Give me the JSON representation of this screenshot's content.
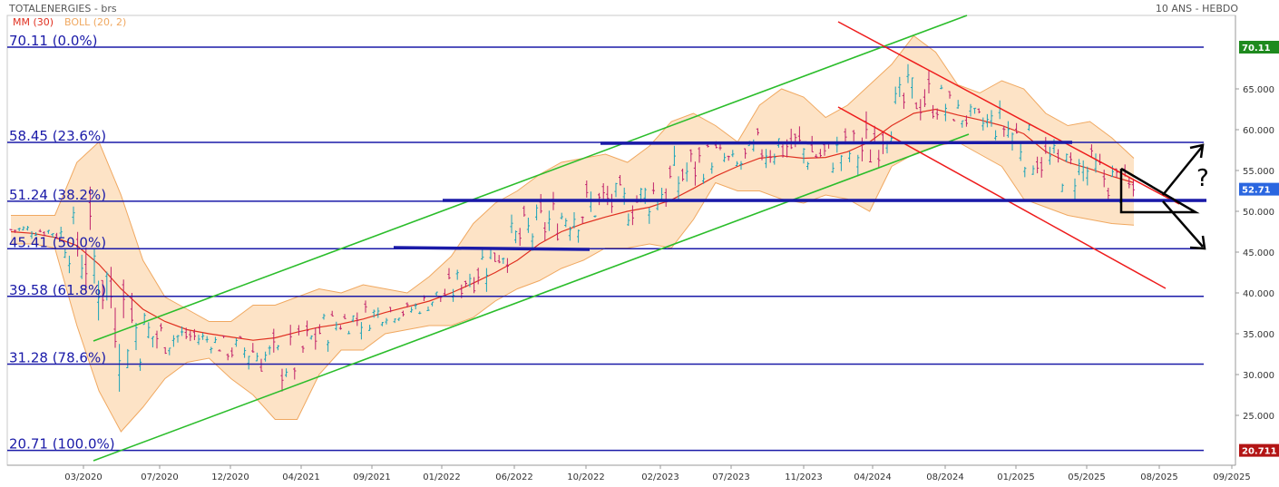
{
  "header": {
    "symbol": "TOTALENERGIES - brs",
    "indicator_ma": "MM (30)",
    "indicator_boll": "BOLL (20, 2)",
    "period": "10 ANS - HEBDO"
  },
  "colors": {
    "price_tag_green": "#1e8a1e",
    "price_tag_blue": "#2a66e0",
    "price_tag_red": "#b31515",
    "ma": "#e03020",
    "boll_fill": "#fde3c6",
    "boll_line": "#f0a860",
    "fib_line": "#1a1aa8",
    "channel_up": "#2bbd2b",
    "channel_down": "#ee1c1c",
    "candle_up": "#1aa3b8",
    "candle_down": "#c0206a"
  },
  "price_tags": [
    {
      "value": "70.11",
      "price": 70.11,
      "color": "#1e8a1e"
    },
    {
      "value": "52.71",
      "price": 52.71,
      "color": "#2a66e0"
    },
    {
      "value": "20.711",
      "price": 20.71,
      "color": "#b31515"
    }
  ],
  "chart_data": {
    "type": "candlestick",
    "title": "TOTALENERGIES - brs",
    "period": "10 ANS - HEBDO",
    "ylim": [
      19,
      72
    ],
    "y_ticks": [
      "25.000",
      "30.000",
      "35.000",
      "40.000",
      "45.000",
      "50.000",
      "55.000",
      "60.000",
      "65.000"
    ],
    "y_tick_values": [
      25,
      30,
      35,
      40,
      45,
      50,
      55,
      60,
      65
    ],
    "x_ticks": [
      "03/2020",
      "07/2020",
      "12/2020",
      "04/2021",
      "09/2021",
      "01/2022",
      "06/2022",
      "10/2022",
      "02/2023",
      "07/2023",
      "11/2023",
      "04/2024",
      "08/2024",
      "01/2025",
      "05/2025",
      "08/2025",
      "09/2025"
    ],
    "fibonacci": [
      {
        "label": "70.11  (0.0%)",
        "price": 70.11
      },
      {
        "label": "58.45  (23.6%)",
        "price": 58.45
      },
      {
        "label": "51.24  (38.2%)",
        "price": 51.24
      },
      {
        "label": "45.41  (50.0%)",
        "price": 45.41
      },
      {
        "label": "39.58  (61.8%)",
        "price": 39.58
      },
      {
        "label": "31.28  (78.6%)",
        "price": 31.28
      },
      {
        "label": "20.71  (100.0%)",
        "price": 20.71
      }
    ],
    "annotation": "?",
    "series": [
      {
        "name": "MM (30)",
        "values": [
          47.5,
          47.3,
          46.8,
          45.8,
          43.5,
          40.5,
          38.0,
          36.5,
          35.5,
          35.0,
          34.6,
          34.2,
          34.5,
          35.2,
          35.8,
          36.2,
          36.8,
          37.6,
          38.3,
          39.0,
          40.0,
          41.2,
          42.5,
          44.0,
          46.0,
          47.5,
          48.5,
          49.3,
          50.0,
          50.5,
          51.4,
          52.8,
          54.3,
          55.5,
          56.5,
          56.8,
          56.5,
          56.6,
          57.3,
          58.5,
          60.5,
          62.0,
          62.5,
          61.8,
          61.2,
          60.5,
          59.5,
          57.3,
          56.0,
          55.2,
          54.3,
          53.5
        ]
      },
      {
        "name": "BOLL (20, 2) upper",
        "values": [
          49.5,
          49.5,
          49.5,
          56.0,
          58.5,
          52.0,
          44.0,
          39.5,
          38.0,
          36.5,
          36.5,
          38.5,
          38.5,
          39.5,
          40.5,
          40.0,
          41.0,
          40.5,
          40.0,
          42.0,
          44.5,
          48.5,
          51.0,
          52.5,
          54.5,
          56.0,
          56.5,
          57.0,
          56.0,
          58.0,
          61.0,
          62.0,
          60.5,
          58.5,
          63.0,
          65.0,
          64.0,
          61.5,
          63.0,
          65.5,
          68.0,
          71.5,
          69.5,
          65.5,
          64.5,
          66.0,
          65.0,
          62.0,
          60.5,
          61.0,
          59.0,
          56.5
        ]
      },
      {
        "name": "BOLL (20, 2) lower",
        "values": [
          46.0,
          46.0,
          45.5,
          36.0,
          28.0,
          23.0,
          26.0,
          29.5,
          31.5,
          32.0,
          29.5,
          27.5,
          24.5,
          24.5,
          30.0,
          33.0,
          33.0,
          35.0,
          35.5,
          36.0,
          36.0,
          37.0,
          39.0,
          40.5,
          41.5,
          43.0,
          44.0,
          45.5,
          45.5,
          46.0,
          45.5,
          49.0,
          53.5,
          52.5,
          52.5,
          51.5,
          51.0,
          52.0,
          51.5,
          50.0,
          55.5,
          57.0,
          58.0,
          58.5,
          57.0,
          55.5,
          51.5,
          50.5,
          49.5,
          49.0,
          48.5,
          48.3
        ]
      }
    ]
  }
}
